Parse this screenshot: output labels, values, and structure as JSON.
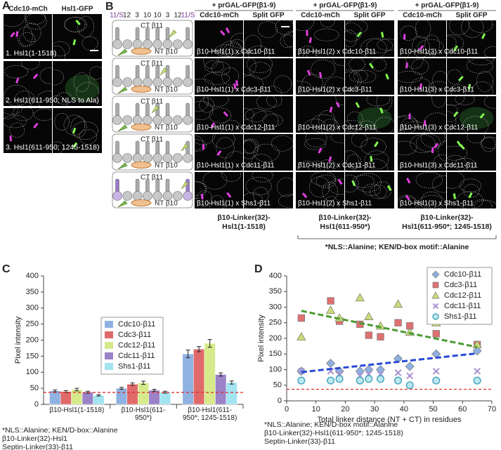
{
  "panel_a": {
    "label": "A",
    "headers": [
      "Cdc10-mCh",
      "Hsl1-GFP"
    ],
    "rows": [
      "1. Hsl1(1-1518)",
      "2. Hsl1(611-950; NLS to Ala)",
      "3. Hsl1(611-950; 1245-1518)"
    ]
  },
  "panel_b": {
    "label": "B",
    "septin_labels": [
      "11/S",
      "12",
      "3",
      "10",
      "10",
      "3",
      "12",
      "11/S"
    ],
    "diagram_labels": [
      {
        "ct": "CT β11",
        "nt": "NT β10"
      },
      {
        "ct": "CT β11",
        "nt": "NT β10"
      },
      {
        "ct": "CT β11",
        "nt": "NT β10"
      },
      {
        "ct": "CT β11",
        "nt": "NT β10"
      },
      {
        "ct": "CT β11",
        "nt": "NT β10"
      }
    ],
    "columns": [
      {
        "header": "+ prGAL-GFP(β1-9)",
        "subheaders": [
          "Cdc10-mCh",
          "Split GFP"
        ],
        "rows": [
          "β10-Hsl1(1) x Cdc10-β11",
          "β10-Hsl1(1) x Cdc3-β11",
          "β10-Hsl1(1) x Cdc12-β11",
          "β10-Hsl1(1) x Cdc11-β11",
          "β10-Hsl1(1) x Shs1-β11"
        ],
        "footer": [
          "β10-Linker(32)-",
          "Hsl1(1-1518)"
        ]
      },
      {
        "header": "+ prGAL-GFP(β1-9)",
        "subheaders": [
          "Cdc10-mCh",
          "Split GFP"
        ],
        "rows": [
          "β10-Hsl1(2) x Cdc10-β11",
          "β10-Hsl1(2) x Cdc3-β11",
          "β10-Hsl1(2) x Cdc12-β11",
          "β10-Hsl1(2) x Cdc11-β11",
          "β10-Hsl1(2) x Shs1-β11"
        ],
        "footer": [
          "β10-Linker(32)-",
          "Hsl1(611-950*)"
        ]
      },
      {
        "header": "+ prGAL-GFP(β1-9)",
        "subheaders": [
          "Cdc10-mCh",
          "Split GFP"
        ],
        "rows": [
          "β10-Hsl1(3) x Cdc10-β11",
          "β10-Hsl1(3) x Cdc3-β11",
          "β10-Hsl1(3) x Cdc12-β11",
          "β10-Hsl1(3) x Cdc11-β11",
          "β10-Hsl1(3) x Shs1-β11"
        ],
        "footer": [
          "β10-Linker(32)-",
          "Hsl1(611-950*; 1245-1518)"
        ]
      }
    ],
    "footnote": "*NLS::Alanine; KEN/D-box motif::Alanine"
  },
  "chart_data": [
    {
      "type": "bar",
      "panel_label": "C",
      "y_label": "Pixel intensity",
      "categories": [
        "β10-Hsl1(1-1518)",
        "β10-Hsl1(611-950*)",
        "β10-Hsl1(611-950*; 1245-1518)"
      ],
      "series": [
        {
          "name": "Cdc10-β11",
          "color": "#8fb2e2",
          "values": [
            42,
            50,
            157
          ],
          "errors": [
            3,
            3,
            12
          ]
        },
        {
          "name": "Cdc3-β11",
          "color": "#e06a6a",
          "values": [
            40,
            63,
            172
          ],
          "errors": [
            3,
            4,
            8
          ]
        },
        {
          "name": "Cdc12-β11",
          "color": "#d6ea8c",
          "values": [
            46,
            67,
            190
          ],
          "errors": [
            4,
            5,
            12
          ]
        },
        {
          "name": "Cdc11-β11",
          "color": "#9c82c8",
          "values": [
            38,
            44,
            93
          ],
          "errors": [
            3,
            3,
            5
          ]
        },
        {
          "name": "Shs1-β11",
          "color": "#a2e4f0",
          "values": [
            28,
            38,
            68
          ],
          "errors": [
            2,
            3,
            5
          ]
        }
      ],
      "threshold": 37,
      "threshold_color": "#e03030",
      "ylim": [
        0,
        400
      ],
      "yticks": [
        0,
        50,
        100,
        150,
        200,
        250,
        300,
        350,
        400
      ],
      "legend": "center",
      "footnotes": [
        "*NLS::Alanine; KEN/D-box::Alanine",
        "β10-Linker(32)-Hsl1",
        "Septin-Linker(33)-β11"
      ]
    },
    {
      "type": "scatter",
      "panel_label": "D",
      "y_label": "Pixel intensity",
      "x_label": "Total linker distance (NT + CT) in residues",
      "x": [
        5,
        15,
        18,
        25,
        28,
        32,
        38,
        42,
        51,
        65
      ],
      "series": [
        {
          "name": "Cdc10-β11",
          "color": "#8fb0e0",
          "marker": "diamond",
          "values": [
            95,
            120,
            95,
            95,
            100,
            100,
            135,
            110,
            150,
            160
          ]
        },
        {
          "name": "Cdc3-β11",
          "color": "#e07070",
          "marker": "square",
          "values": [
            265,
            320,
            255,
            245,
            210,
            205,
            250,
            240,
            215,
            180
          ]
        },
        {
          "name": "Cdc12-β11",
          "color": "#c8dc78",
          "marker": "triangle",
          "values": [
            205,
            290,
            265,
            330,
            270,
            240,
            310,
            220,
            250,
            180
          ]
        },
        {
          "name": "Cdc11-β11",
          "color": "#a890d0",
          "marker": "x",
          "values": [
            95,
            95,
            85,
            80,
            85,
            85,
            90,
            80,
            95,
            95
          ]
        },
        {
          "name": "Shs1-β11",
          "color": "#4aa8c0",
          "marker": "circle",
          "values": [
            65,
            65,
            70,
            65,
            70,
            70,
            65,
            50,
            65,
            65
          ]
        }
      ],
      "trendlines": [
        {
          "color": "#4a9a30",
          "x": [
            5,
            65
          ],
          "values": [
            288,
            172
          ]
        },
        {
          "color": "#2848d8",
          "x": [
            5,
            65
          ],
          "values": [
            92,
            152
          ]
        }
      ],
      "threshold": 37,
      "threshold_color": "#e03030",
      "xlim": [
        0,
        70
      ],
      "xticks": [
        0,
        10,
        20,
        30,
        40,
        50,
        60,
        70
      ],
      "ylim": [
        0,
        400
      ],
      "yticks": [
        0,
        50,
        100,
        150,
        200,
        250,
        300,
        350,
        400
      ],
      "legend": "upper right",
      "footnotes": [
        "*NLS::Alanine; KEN/D-box motif::Alanine",
        "β10-Linker(32)-Hsl1(611-950*; 1245-1518)",
        "Septin-Linker(33)-β11"
      ]
    }
  ]
}
